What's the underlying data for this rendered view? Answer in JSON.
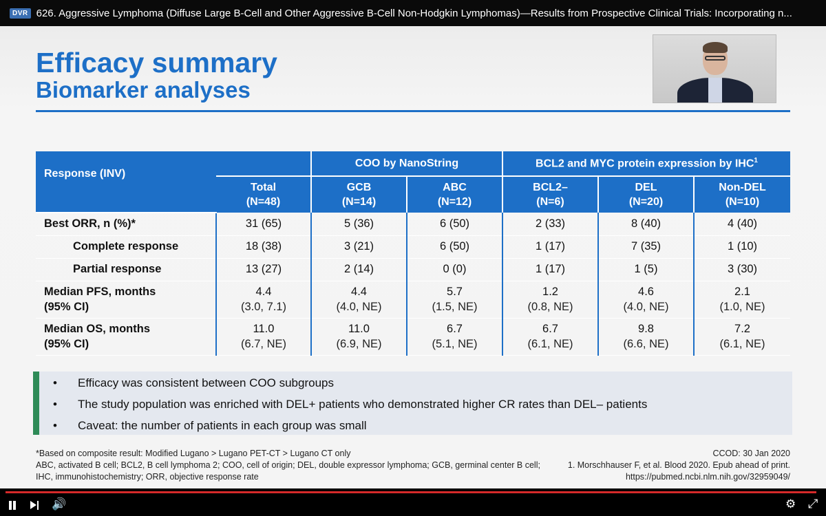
{
  "player": {
    "badge": "DVR",
    "title": "626. Aggressive Lymphoma (Diffuse Large B-Cell and Other Aggressive B-Cell Non-Hodgkin Lymphomas)—Results from Prospective Clinical Trials: Incorporating n...",
    "progress_fraction": 0.995,
    "icons": {
      "play_pause": "pause-icon",
      "next": "next-icon",
      "volume": "volume-icon",
      "settings": "gear-icon",
      "fullscreen": "exit-fullscreen-icon"
    }
  },
  "slide": {
    "title": "Efficacy summary",
    "subtitle": "Biomarker analyses",
    "accent_color": "#1d6fc7",
    "bullet_bar_color": "#2e8b57",
    "table": {
      "corner": "Response (INV)",
      "group_coo": "COO by NanoString",
      "group_bcl": "BCL2 and MYC protein expression by IHC",
      "group_bcl_sup": "1",
      "columns": [
        {
          "name": "Total",
          "n": "(N=48)"
        },
        {
          "name": "GCB",
          "n": "(N=14)"
        },
        {
          "name": "ABC",
          "n": "(N=12)"
        },
        {
          "name": "BCL2–",
          "n": "(N=6)"
        },
        {
          "name": "DEL",
          "n": "(N=20)"
        },
        {
          "name": "Non-DEL",
          "n": "(N=10)"
        }
      ],
      "rows": [
        {
          "label": "Best ORR, n (%)*",
          "values": [
            "31 (65)",
            "5 (36)",
            "6 (50)",
            "2 (33)",
            "8 (40)",
            "4 (40)"
          ]
        },
        {
          "label": "Complete response",
          "values": [
            "18 (38)",
            "3 (21)",
            "6 (50)",
            "1 (17)",
            "7 (35)",
            "1 (10)"
          ]
        },
        {
          "label": "Partial response",
          "values": [
            "13 (27)",
            "2 (14)",
            "0 (0)",
            "1 (17)",
            "1 (5)",
            "3 (30)"
          ]
        },
        {
          "label1": "Median PFS, months",
          "label2": "(95% CI)",
          "values": [
            "4.4",
            "4.4",
            "5.7",
            "1.2",
            "4.6",
            "2.1"
          ],
          "ci": [
            "(3.0, 7.1)",
            "(4.0, NE)",
            "(1.5, NE)",
            "(0.8, NE)",
            "(4.0, NE)",
            "(1.0, NE)"
          ]
        },
        {
          "label1": "Median OS, months",
          "label2": "(95% CI)",
          "values": [
            "11.0",
            "11.0",
            "6.7",
            "6.7",
            "9.8",
            "7.2"
          ],
          "ci": [
            "(6.7, NE)",
            "(6.9, NE)",
            "(5.1, NE)",
            "(6.1, NE)",
            "(6.6, NE)",
            "(6.1, NE)"
          ]
        }
      ]
    },
    "bullets": [
      "Efficacy was consistent between COO subgroups",
      "The study population was enriched with DEL+ patients who demonstrated higher CR rates than DEL– patients",
      "Caveat: the number of patients in each group was small"
    ],
    "bullet_marker": "•",
    "footnote_left": [
      "*Based on composite result: Modified Lugano > Lugano PET-CT > Lugano CT only",
      "ABC, activated B cell; BCL2, B cell lymphoma 2; COO, cell of origin; DEL, double expressor lymphoma; GCB, germinal center B cell; IHC, immunohistochemistry; ORR, objective response rate"
    ],
    "footnote_right": [
      "CCOD: 30 Jan 2020",
      "1. Morschhauser F, et al. Blood 2020. Epub ahead of print.",
      "https://pubmed.ncbi.nlm.nih.gov/32959049/"
    ]
  }
}
